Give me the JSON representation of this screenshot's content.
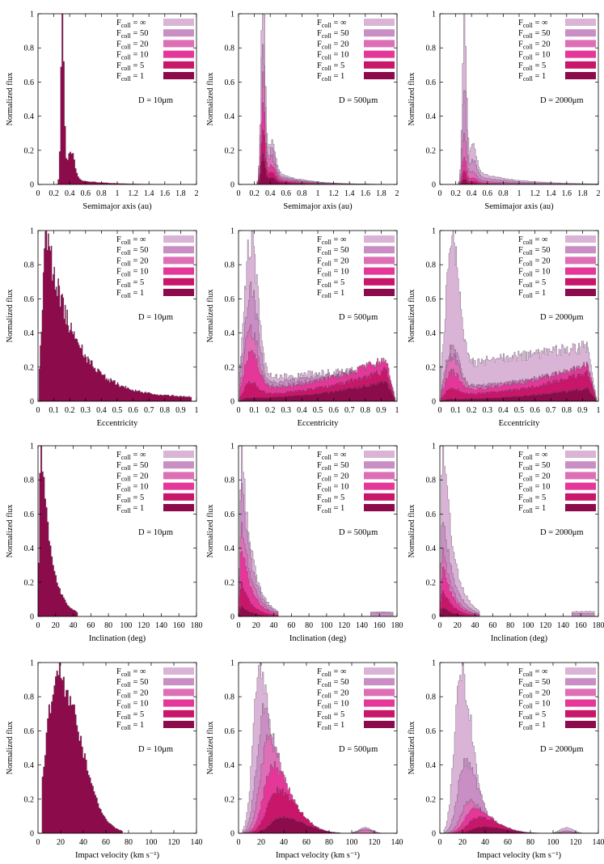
{
  "figure": {
    "ylabel": "Normalized flux",
    "legend": [
      {
        "sub": "coll",
        "value": "∞",
        "color": "#d9b4d6"
      },
      {
        "sub": "coll",
        "value": "50",
        "color": "#c98fc4"
      },
      {
        "sub": "coll",
        "value": "20",
        "color": "#dc6fb6"
      },
      {
        "sub": "coll",
        "value": "10",
        "color": "#e5379a"
      },
      {
        "sub": "coll",
        "value": "5",
        "color": "#c8166a"
      },
      {
        "sub": "coll",
        "value": "1",
        "color": "#8b0b4b"
      }
    ],
    "legend_prefix": "F",
    "legend_eq": "=",
    "sizes": [
      "D = 10μm",
      "D = 500μm",
      "D = 2000μm"
    ],
    "rows": [
      {
        "id": "semimajor",
        "xlabel": "Semimajor axis (au)",
        "xlim": [
          0,
          2
        ],
        "xticks": [
          "0",
          "0.2",
          "0.4",
          "0.6",
          "0.8",
          "1",
          "1.2",
          "1.4",
          "1.6",
          "1.8",
          "2"
        ]
      },
      {
        "id": "eccentricity",
        "xlabel": "Eccentricity",
        "xlim": [
          0,
          1
        ],
        "xticks": [
          "0",
          "0.1",
          "0.2",
          "0.3",
          "0.4",
          "0.5",
          "0.6",
          "0.7",
          "0.8",
          "0.9",
          "1"
        ]
      },
      {
        "id": "inclination",
        "xlabel": "Inclination (deg)",
        "xlim": [
          0,
          180
        ],
        "xticks": [
          "0",
          "20",
          "40",
          "60",
          "80",
          "100",
          "120",
          "140",
          "160",
          "180"
        ]
      },
      {
        "id": "velocity",
        "xlabel": "Impact velocity (km s⁻¹)",
        "xlim": [
          0,
          140
        ],
        "xticks": [
          "0",
          "20",
          "40",
          "60",
          "80",
          "100",
          "120",
          "140"
        ]
      }
    ],
    "yticks": [
      "0",
      "0.2",
      "0.4",
      "0.6",
      "0.8",
      "1"
    ],
    "ylim": [
      0,
      1
    ]
  },
  "chart_data": {
    "type": "area",
    "title": "",
    "layout": "4 rows x 3 columns of stacked step histograms",
    "series_names": [
      "Fcoll = ∞",
      "Fcoll = 50",
      "Fcoll = 20",
      "Fcoll = 10",
      "Fcoll = 5",
      "Fcoll = 1"
    ],
    "series_peaks": {
      "semimajor": {
        "D = 10μm": [
          1,
          1,
          1,
          1,
          1,
          1
        ],
        "D = 500μm": [
          1,
          0.82,
          0.66,
          0.48,
          0.32,
          0.18
        ],
        "D = 2000μm": [
          1,
          0.55,
          0.3,
          0.16,
          0.08,
          0.03
        ]
      },
      "eccentricity": {
        "D = 10μm": [
          1,
          1,
          1,
          1,
          1,
          1
        ],
        "D = 500μm": [
          1,
          0.7,
          0.45,
          0.3,
          0.2,
          0.12
        ],
        "D = 2000μm": [
          1,
          0.33,
          0.28,
          0.23,
          0.18,
          0.08
        ]
      },
      "inclination": {
        "D = 10μm": [
          1,
          1,
          1,
          1,
          1,
          1
        ],
        "D = 500μm": [
          1,
          0.78,
          0.55,
          0.38,
          0.2,
          0.06
        ],
        "D = 2000μm": [
          1,
          0.55,
          0.4,
          0.29,
          0.15,
          0.05
        ]
      },
      "velocity": {
        "D = 10μm": [
          1,
          1,
          1,
          1,
          1,
          1
        ],
        "D = 500μm": [
          1,
          0.76,
          0.58,
          0.42,
          0.27,
          0.1
        ],
        "D = 2000μm": [
          1,
          0.44,
          0.2,
          0.15,
          0.1,
          0.04
        ]
      }
    },
    "xlabel": [
      "Semimajor axis (au)",
      "Eccentricity",
      "Inclination (deg)",
      "Impact velocity (km s⁻¹)"
    ],
    "ylabel": "Normalized flux",
    "ylim": [
      0,
      1
    ]
  }
}
